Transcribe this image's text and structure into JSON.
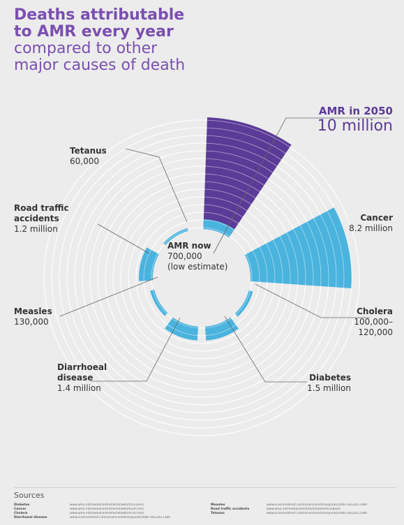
{
  "title": {
    "line1": "Deaths attributable",
    "line2": "to AMR every year",
    "line3": "compared to other",
    "line4": "major causes of death"
  },
  "colors": {
    "purple": "#5b3b97",
    "blue": "#4ab3de",
    "ring": "#ffffff",
    "title": "#7a4fb0"
  },
  "labels": {
    "amr2050": {
      "name": "AMR in 2050",
      "value": "10 million"
    },
    "cancer": {
      "name": "Cancer",
      "value": "8.2 million"
    },
    "cholera": {
      "name": "Cholera",
      "value": "100,000–",
      "value2": "120,000"
    },
    "diabetes": {
      "name": "Diabetes",
      "value": "1.5 million"
    },
    "diarrhoeal": {
      "name": "Diarrhoeal",
      "name2": "disease",
      "value": "1.4 million"
    },
    "measles": {
      "name": "Measles",
      "value": "130,000"
    },
    "road": {
      "name": "Road traffic",
      "name2": "accidents",
      "value": "1.2 million"
    },
    "tetanus": {
      "name": "Tetanus",
      "value": "60,000"
    },
    "amrnow": {
      "name": "AMR now",
      "value": "700,000",
      "note": "(low estimate)"
    }
  },
  "chart_data": {
    "type": "radial-bar",
    "unit": "deaths per year",
    "categories": [
      "AMR in 2050",
      "Cancer",
      "Cholera",
      "Diabetes",
      "Diarrhoeal disease",
      "Measles",
      "Road traffic accidents",
      "Tetanus",
      "AMR now"
    ],
    "values": [
      10000000,
      8200000,
      120000,
      1500000,
      1400000,
      130000,
      1200000,
      60000,
      700000
    ]
  },
  "sources": {
    "heading": "Sources",
    "left": [
      {
        "k": "Diabetes",
        "u": "www.who.int/mediacentre/factsheets/fs312/en/"
      },
      {
        "k": "Cancer",
        "u": "www.who.int/mediacentre/factsheets/fs297/en/"
      },
      {
        "k": "Cholera",
        "u": "www.who.int/mediacentre/factsheets/fs107/en/"
      },
      {
        "k": "Diarrhoeal disease",
        "u": "www.sciencedirect.com/science/article/pii/S0140673612617280"
      }
    ],
    "right": [
      {
        "k": "Measles",
        "u": "www.sciencedirect.com/science/article/pii/S0140673612617280"
      },
      {
        "k": "Road traffic accidents",
        "u": "www.who.int/mediacentre/factsheets/fs358/en/"
      },
      {
        "k": "Tetanus",
        "u": "www.sciencedirect.com/science/article/pii/S0140673612617280"
      }
    ]
  }
}
